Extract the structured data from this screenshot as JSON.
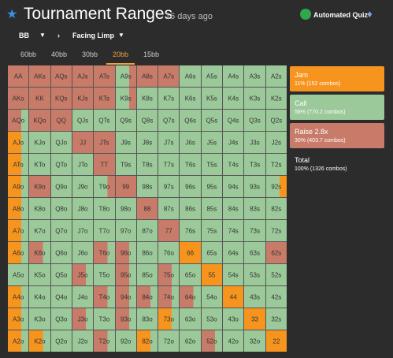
{
  "header": {
    "title": "Tournament Ranges",
    "age": "16 days ago",
    "quiz_button": "Automated Quiz"
  },
  "filters": {
    "position": "BB",
    "scenario": "Facing Limp"
  },
  "tabs": {
    "items": [
      "60bb",
      "40bb",
      "30bb",
      "20bb",
      "15bb"
    ],
    "active": 3
  },
  "grid": {
    "hands": [
      [
        "AA",
        "AKs",
        "AQs",
        "AJs",
        "ATs",
        "A9s",
        "A8s",
        "A7s",
        "A6s",
        "A5s",
        "A4s",
        "A3s",
        "A2s"
      ],
      [
        "AKo",
        "KK",
        "KQs",
        "KJs",
        "KTs",
        "K9s",
        "K8s",
        "K7s",
        "K6s",
        "K5s",
        "K4s",
        "K3s",
        "K2s"
      ],
      [
        "AQo",
        "KQo",
        "QQ",
        "QJs",
        "QTs",
        "Q9s",
        "Q8s",
        "Q7s",
        "Q6s",
        "Q5s",
        "Q4s",
        "Q3s",
        "Q2s"
      ],
      [
        "AJo",
        "KJo",
        "QJo",
        "JJ",
        "JTs",
        "J9s",
        "J8s",
        "J7s",
        "J6s",
        "J5s",
        "J4s",
        "J3s",
        "J2s"
      ],
      [
        "ATo",
        "KTo",
        "QTo",
        "JTo",
        "TT",
        "T9s",
        "T8s",
        "T7s",
        "T6s",
        "T5s",
        "T4s",
        "T3s",
        "T2s"
      ],
      [
        "A9o",
        "K9o",
        "Q9o",
        "J9o",
        "T9o",
        "99",
        "98s",
        "97s",
        "96s",
        "95s",
        "94s",
        "93s",
        "92s"
      ],
      [
        "A8o",
        "K8o",
        "Q8o",
        "J8o",
        "T8o",
        "98o",
        "88",
        "87s",
        "86s",
        "85s",
        "84s",
        "83s",
        "82s"
      ],
      [
        "A7o",
        "K7o",
        "Q7o",
        "J7o",
        "T7o",
        "97o",
        "87o",
        "77",
        "76s",
        "75s",
        "74s",
        "73s",
        "72s"
      ],
      [
        "A6o",
        "K6o",
        "Q6o",
        "J6o",
        "T6o",
        "96o",
        "86o",
        "76o",
        "66",
        "65s",
        "64s",
        "63s",
        "62s"
      ],
      [
        "A5o",
        "K5o",
        "Q5o",
        "J5o",
        "T5o",
        "95o",
        "85o",
        "75o",
        "65o",
        "55",
        "54s",
        "53s",
        "52s"
      ],
      [
        "A4o",
        "K4o",
        "Q4o",
        "J4o",
        "T4o",
        "94o",
        "84o",
        "74o",
        "64o",
        "54o",
        "44",
        "43s",
        "42s"
      ],
      [
        "A3o",
        "K3o",
        "Q3o",
        "J3o",
        "T3o",
        "93o",
        "83o",
        "73o",
        "63o",
        "53o",
        "43o",
        "33",
        "32s"
      ],
      [
        "A2o",
        "K2o",
        "Q2o",
        "J2o",
        "T2o",
        "92o",
        "82o",
        "72o",
        "62o",
        "52o",
        "42o",
        "32o",
        "22"
      ]
    ],
    "actions": [
      [
        "R",
        "R",
        "R",
        "R",
        "R",
        "CR",
        "R",
        "R",
        "C",
        "C",
        "C",
        "C",
        "C"
      ],
      [
        "R",
        "R",
        "R",
        "R",
        "R",
        "CR",
        "C",
        "C",
        "C",
        "C",
        "C",
        "C",
        "C"
      ],
      [
        "RC",
        "R",
        "R",
        "C",
        "C",
        "C",
        "C",
        "C",
        "C",
        "C",
        "C",
        "C",
        "C"
      ],
      [
        "JC",
        "C",
        "C",
        "R",
        "R",
        "C",
        "C",
        "C",
        "C",
        "C",
        "C",
        "C",
        "C"
      ],
      [
        "JC",
        "C",
        "C",
        "C",
        "R",
        "C",
        "C",
        "C",
        "C",
        "C",
        "C",
        "C",
        "C"
      ],
      [
        "JC",
        "R",
        "C",
        "C",
        "CR",
        "R",
        "C",
        "C",
        "C",
        "C",
        "C",
        "C",
        "CJ"
      ],
      [
        "JC",
        "C",
        "C",
        "C",
        "C",
        "C",
        "R",
        "C",
        "C",
        "C",
        "C",
        "C",
        "C"
      ],
      [
        "JC",
        "C",
        "C",
        "C",
        "C",
        "C",
        "C",
        "R",
        "C",
        "C",
        "C",
        "C",
        "C"
      ],
      [
        "JC",
        "RC",
        "C",
        "C",
        "RC",
        "RC",
        "C",
        "C",
        "J",
        "C",
        "C",
        "C",
        "R"
      ],
      [
        "C",
        "C",
        "C",
        "RC",
        "C",
        "RC",
        "C",
        "RC",
        "C",
        "J",
        "C",
        "C",
        "C"
      ],
      [
        "JC",
        "C",
        "C",
        "C",
        "RC",
        "RC",
        "RC",
        "RC",
        "RC",
        "C",
        "J",
        "C",
        "C"
      ],
      [
        "JC",
        "C",
        "C",
        "RC",
        "C",
        "RC",
        "C",
        "JC",
        "C",
        "C",
        "C",
        "J",
        "C"
      ],
      [
        "JC",
        "JC",
        "C",
        "C",
        "RC",
        "C",
        "JC",
        "C",
        "C",
        "RC",
        "C",
        "C",
        "J"
      ]
    ]
  },
  "summary": [
    {
      "name": "Jam",
      "detail": "11% (152 combos)",
      "color": "#f7941d"
    },
    {
      "name": "Call",
      "detail": "58% (770.2 combos)",
      "color": "#9bc99a"
    },
    {
      "name": "Raise 2.8x",
      "detail": "30% (403.7 combos)",
      "color": "#c77b68"
    },
    {
      "name": "Total",
      "detail": "100% (1326 combos)"
    }
  ]
}
